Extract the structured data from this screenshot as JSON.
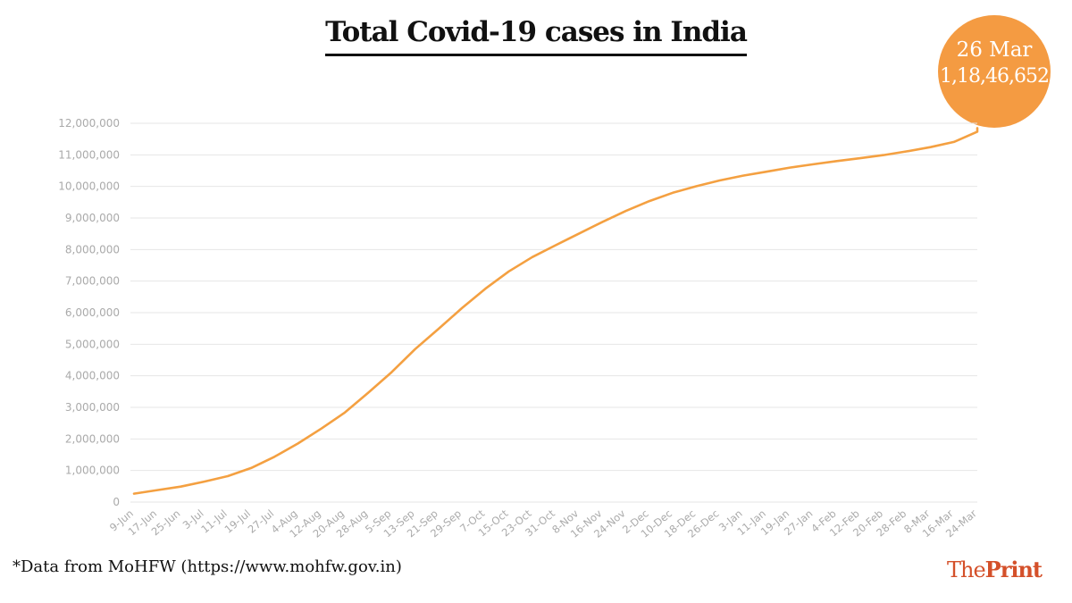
{
  "header": {
    "title": "Total Covid-19 cases in India"
  },
  "callout": {
    "date": "26 Mar",
    "value": "1,18,46,652"
  },
  "footer": {
    "source": "*Data from MoHFW (https://www.mohfw.gov.in)"
  },
  "brand": {
    "part1": "The",
    "part2": "Print",
    "color": "#d4502a"
  },
  "colors": {
    "line": "#f4a041",
    "callout": "#f49b42",
    "grid": "#e6e6e6",
    "tick_text": "#aaaaaa"
  },
  "chart_data": {
    "type": "line",
    "title": "Total Covid-19 cases in India",
    "xlabel": "",
    "ylabel": "",
    "ylim": [
      0,
      12000000
    ],
    "grid": true,
    "legend": "none",
    "y_ticks": [
      "0",
      "1,000,000",
      "2,000,000",
      "3,000,000",
      "4,000,000",
      "5,000,000",
      "6,000,000",
      "7,000,000",
      "8,000,000",
      "9,000,000",
      "10,000,000",
      "11,000,000",
      "12,000,000"
    ],
    "x_tick_labels": [
      "9-Jun",
      "17-Jun",
      "25-Jun",
      "3-Jul",
      "11-Jul",
      "19-Jul",
      "27-Jul",
      "4-Aug",
      "12-Aug",
      "20-Aug",
      "28-Aug",
      "5-Sep",
      "13-Sep",
      "21-Sep",
      "29-Sep",
      "7-Oct",
      "15-Oct",
      "23-Oct",
      "31-Oct",
      "8-Nov",
      "16-Nov",
      "24-Nov",
      "2-Dec",
      "10-Dec",
      "18-Dec",
      "26-Dec",
      "3-Jan",
      "11-Jan",
      "19-Jan",
      "27-Jan",
      "4-Feb",
      "12-Feb",
      "20-Feb",
      "28-Feb",
      "8-Mar",
      "16-Mar",
      "24-Mar"
    ],
    "series": [
      {
        "values": [
          266598,
          380532,
          490401,
          648315,
          820916,
          1077618,
          1435453,
          1855745,
          2329638,
          2836925,
          3463972,
          4113811,
          4846427,
          5487580,
          6145291,
          6757131,
          7307097,
          7761312,
          8137119,
          8507754,
          8874290,
          9222216,
          9534964,
          9796769,
          10004599,
          10187850,
          10340469,
          10466595,
          10595660,
          10701193,
          10802591,
          10892746,
          10991651,
          11112241,
          11244786,
          11409831,
          11734058
        ],
        "final_value": 11846652
      }
    ]
  }
}
